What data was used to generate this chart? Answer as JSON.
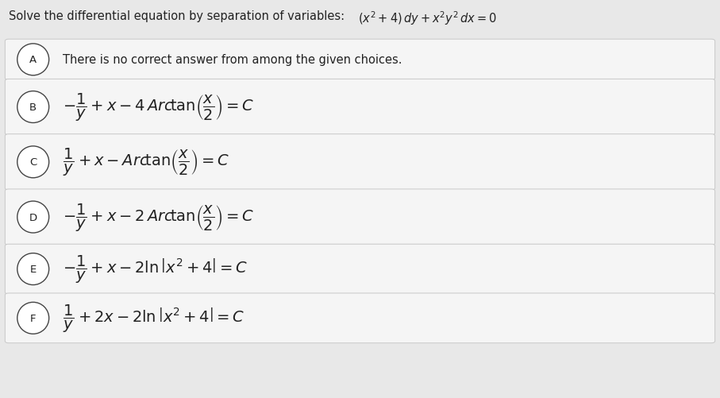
{
  "title_plain": "Solve the differential equation by separation of variables: ",
  "title_math": "$(x^2+4)\\,dy+x^2y^2\\,dx=0$",
  "background_color": "#e8e8e8",
  "box_color": "#f5f5f5",
  "border_color": "#c8c8c8",
  "text_color": "#222222",
  "options": [
    {
      "label": "A",
      "plain_text": "There is no correct answer from among the given choices.",
      "math": false
    },
    {
      "label": "B",
      "math_text": "$-\\dfrac{1}{y}+x-4\\,Arc\\!\\tan\\!\\left(\\dfrac{x}{2}\\right)=C$",
      "math": true
    },
    {
      "label": "C",
      "math_text": "$\\dfrac{1}{y}+x-Arc\\!\\tan\\!\\left(\\dfrac{x}{2}\\right)=C$",
      "math": true
    },
    {
      "label": "D",
      "math_text": "$-\\dfrac{1}{y}+x-2\\,Arc\\!\\tan\\!\\left(\\dfrac{x}{2}\\right)=C$",
      "math": true
    },
    {
      "label": "E",
      "math_text": "$-\\dfrac{1}{y}+x-2\\ln\\left|x^2+4\\right|=C$",
      "math": true
    },
    {
      "label": "F",
      "math_text": "$\\dfrac{1}{y}+2x-2\\ln\\left|x^2+4\\right|=C$",
      "math": true
    }
  ],
  "figsize": [
    9.07,
    5.02
  ],
  "dpi": 100
}
